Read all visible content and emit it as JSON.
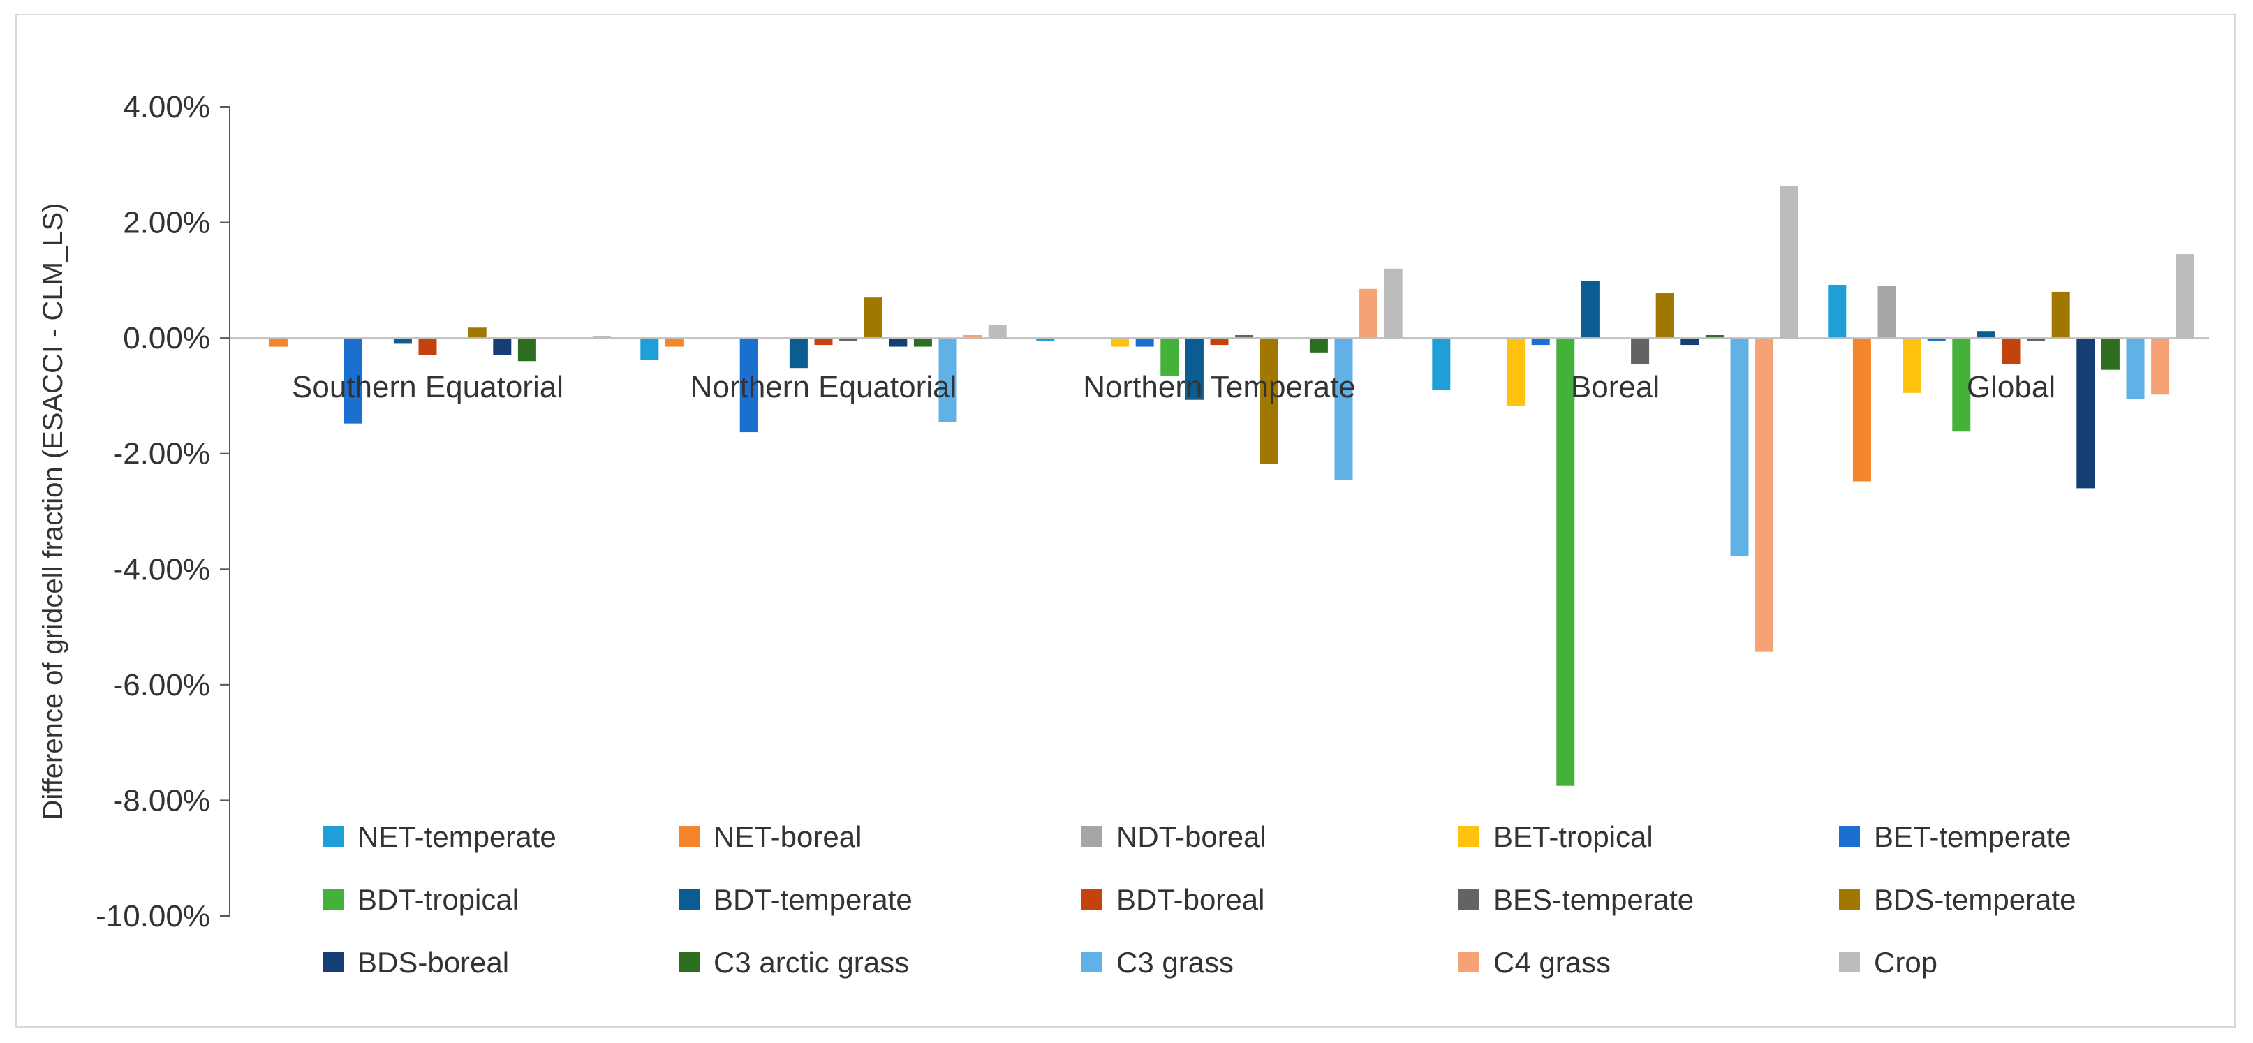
{
  "chart_data": {
    "type": "bar",
    "title": "",
    "xlabel": "",
    "ylabel": "Difference of gridcell fraction (ESACCI - CLM_LS)",
    "ylim": [
      -10.0,
      4.0
    ],
    "yticks": [
      4,
      2,
      0,
      -2,
      -4,
      -6,
      -8,
      -10
    ],
    "ytick_labels": [
      "4.00%",
      "2.00%",
      "0.00%",
      "-2.00%",
      "-4.00%",
      "-6.00%",
      "-8.00%",
      "-10.00%"
    ],
    "legend_position": "bottom-inside",
    "categories": [
      "Southern Equatorial",
      "Northern Equatorial",
      "Northern Temperate",
      "Boreal",
      "Global"
    ],
    "series": [
      {
        "name": "NET-temperate",
        "color": "#1f9ed8",
        "values": [
          0.0,
          -0.38,
          -0.05,
          -0.9,
          0.92
        ]
      },
      {
        "name": "NET-boreal",
        "color": "#f5852a",
        "values": [
          -0.15,
          -0.15,
          0.0,
          0.0,
          -2.48
        ]
      },
      {
        "name": "NDT-boreal",
        "color": "#a6a6a6",
        "values": [
          0.0,
          0.0,
          0.0,
          0.0,
          0.9
        ]
      },
      {
        "name": "BET-tropical",
        "color": "#ffc20e",
        "values": [
          0.0,
          0.0,
          -0.15,
          -1.18,
          -0.95
        ]
      },
      {
        "name": "BET-temperate",
        "color": "#1b6fcf",
        "values": [
          -1.48,
          -1.63,
          -0.15,
          -0.12,
          -0.05
        ]
      },
      {
        "name": "BDT-tropical",
        "color": "#43b13a",
        "values": [
          0.0,
          0.0,
          -0.65,
          -7.75,
          -1.62
        ]
      },
      {
        "name": "BDT-temperate",
        "color": "#0b5c91",
        "values": [
          -0.1,
          -0.52,
          -1.07,
          0.98,
          0.12
        ]
      },
      {
        "name": "BDT-boreal",
        "color": "#c4420c",
        "values": [
          -0.3,
          -0.12,
          -0.12,
          0.0,
          -0.45
        ]
      },
      {
        "name": "BES-temperate",
        "color": "#636363",
        "values": [
          0.0,
          -0.05,
          0.05,
          -0.45,
          -0.05
        ]
      },
      {
        "name": "BDS-temperate",
        "color": "#a07800",
        "values": [
          0.18,
          0.7,
          -2.18,
          0.78,
          0.8
        ]
      },
      {
        "name": "BDS-boreal",
        "color": "#153e74",
        "values": [
          -0.3,
          -0.15,
          0.0,
          -0.12,
          -2.6
        ]
      },
      {
        "name": "C3 arctic grass",
        "color": "#2e6e23",
        "values": [
          -0.4,
          -0.15,
          -0.25,
          0.05,
          -0.55
        ]
      },
      {
        "name": "C3 grass",
        "color": "#5fb1e6",
        "values": [
          0.0,
          -1.45,
          -2.45,
          -3.78,
          -1.05
        ]
      },
      {
        "name": "C4 grass",
        "color": "#f7a274",
        "values": [
          0.0,
          0.05,
          0.85,
          -5.43,
          -0.98
        ]
      },
      {
        "name": "Crop",
        "color": "#bcbcbc",
        "values": [
          0.03,
          0.23,
          1.2,
          2.63,
          1.45
        ]
      }
    ]
  }
}
